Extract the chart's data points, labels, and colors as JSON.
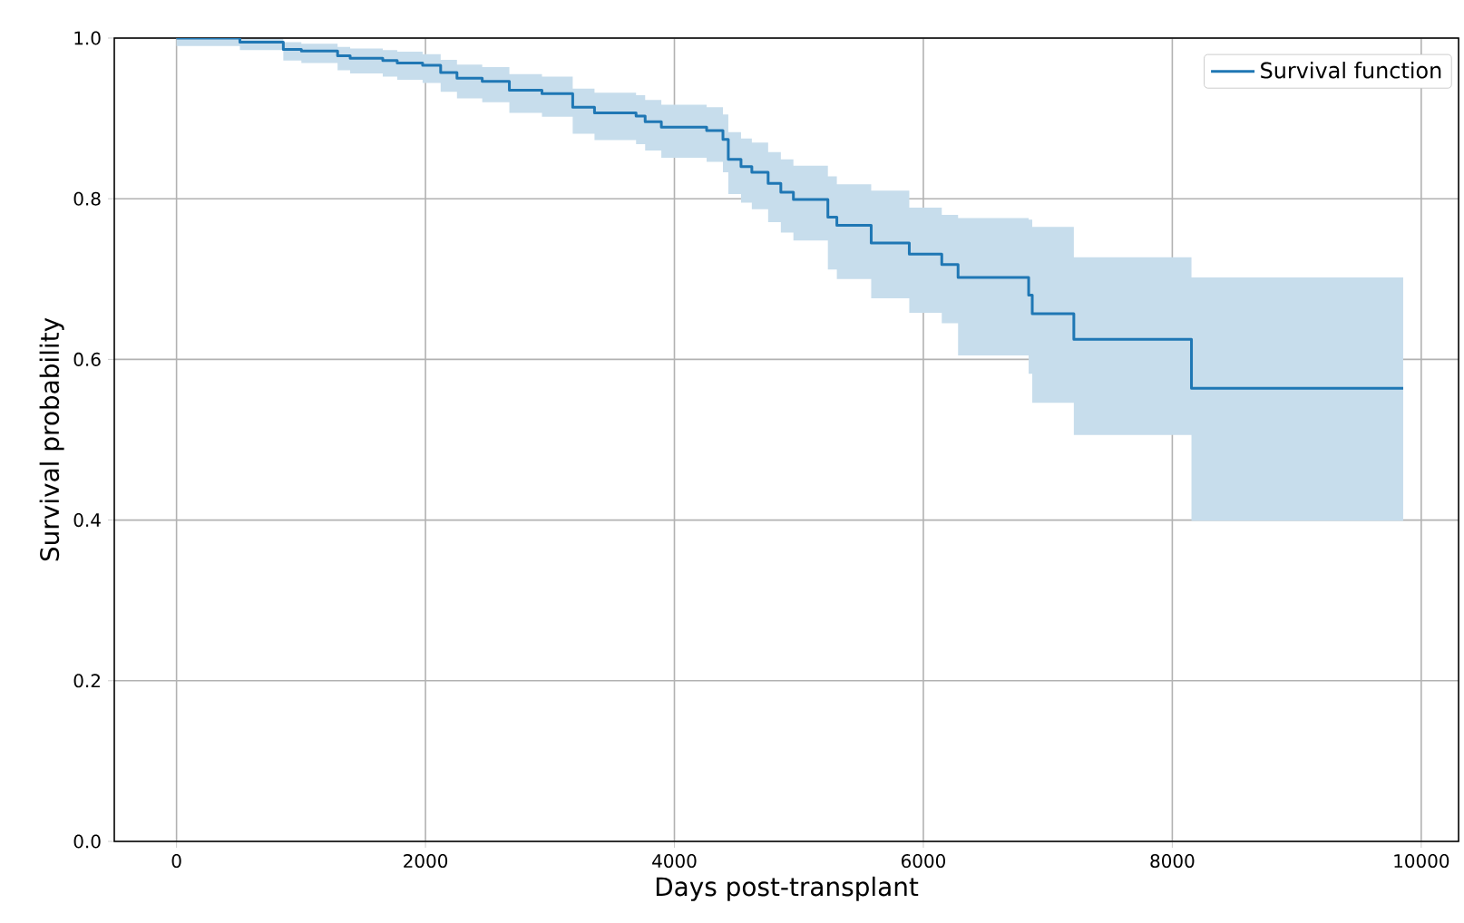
{
  "chart_data": {
    "type": "step",
    "xlabel": "Days post-transplant",
    "ylabel": "Survival probability",
    "x": [
      0,
      509,
      858,
      1003,
      1294,
      1395,
      1657,
      1773,
      1977,
      2122,
      2253,
      2456,
      2674,
      2936,
      3183,
      3358,
      3692,
      3765,
      3895,
      4259,
      4390,
      4433,
      4535,
      4622,
      4753,
      4855,
      4956,
      5233,
      5305,
      5581,
      5887,
      6148,
      6279,
      6846,
      6875,
      7209,
      8154,
      9855
    ],
    "series": [
      {
        "name": "Survival function",
        "color": "#1f77b4",
        "values": [
          1.0,
          0.995,
          0.986,
          0.984,
          0.978,
          0.975,
          0.972,
          0.969,
          0.966,
          0.957,
          0.95,
          0.946,
          0.935,
          0.931,
          0.914,
          0.907,
          0.903,
          0.896,
          0.889,
          0.885,
          0.874,
          0.849,
          0.84,
          0.833,
          0.819,
          0.808,
          0.799,
          0.777,
          0.767,
          0.745,
          0.731,
          0.718,
          0.702,
          0.68,
          0.657,
          0.625,
          0.564,
          0.564
        ],
        "upper": [
          1.0,
          0.999,
          0.995,
          0.993,
          0.989,
          0.987,
          0.985,
          0.983,
          0.98,
          0.973,
          0.967,
          0.964,
          0.955,
          0.952,
          0.937,
          0.932,
          0.929,
          0.923,
          0.917,
          0.914,
          0.905,
          0.883,
          0.875,
          0.87,
          0.858,
          0.849,
          0.841,
          0.828,
          0.818,
          0.81,
          0.789,
          0.78,
          0.776,
          0.774,
          0.765,
          0.727,
          0.702,
          0.702
        ],
        "lower": [
          0.99,
          0.985,
          0.972,
          0.969,
          0.96,
          0.956,
          0.952,
          0.948,
          0.944,
          0.933,
          0.925,
          0.92,
          0.907,
          0.902,
          0.881,
          0.873,
          0.868,
          0.86,
          0.851,
          0.846,
          0.833,
          0.806,
          0.795,
          0.787,
          0.771,
          0.758,
          0.748,
          0.712,
          0.7,
          0.676,
          0.658,
          0.645,
          0.605,
          0.582,
          0.546,
          0.506,
          0.399,
          0.399
        ]
      }
    ],
    "xlim": [
      -500,
      10300
    ],
    "ylim": [
      0,
      1
    ],
    "xticks": [
      0,
      2000,
      4000,
      6000,
      8000,
      10000
    ],
    "yticks": [
      {
        "value": 0,
        "label": "0.0"
      },
      0.2,
      0.4,
      0.6,
      0.8,
      {
        "value": 1,
        "label": "1.0"
      }
    ],
    "grid": true,
    "legend": "top right",
    "line_style": "solid",
    "marker": "none"
  }
}
